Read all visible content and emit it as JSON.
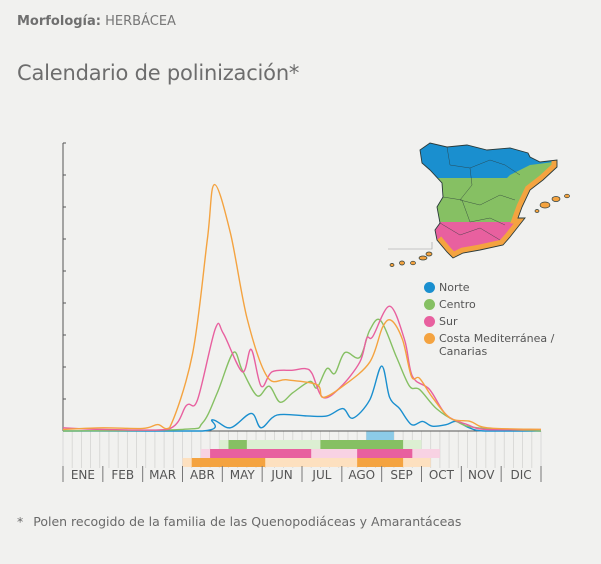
{
  "header": {
    "morphology_label": "Morfología:",
    "morphology_value": "HERBÁCEA"
  },
  "title": "Calendario de polinización*",
  "footnote": {
    "marker": "*",
    "text": "Polen recogido de la familia de las Quenopodiáceas y Amarantáceas"
  },
  "legend": [
    {
      "name": "Norte",
      "color": "#1a8fcf"
    },
    {
      "name": "Centro",
      "color": "#86c063"
    },
    {
      "name": "Sur",
      "color": "#e8609f"
    },
    {
      "name": "Costa Mediterránea / Canarias",
      "color": "#f4a340"
    }
  ],
  "chart_data": {
    "type": "line",
    "title": "",
    "xlabel": "",
    "ylabel": "",
    "x_unit": "month",
    "xlim": [
      0,
      12
    ],
    "ylim": [
      0,
      9
    ],
    "y_tick_labels_shown": false,
    "grid": false,
    "legend_position": "right",
    "categories": [
      "ENE",
      "FEB",
      "MAR",
      "ABR",
      "MAY",
      "JUN",
      "JUL",
      "AGO",
      "SEP",
      "OCT",
      "NOV",
      "DIC"
    ],
    "series": [
      {
        "name": "Norte",
        "color": "#1a8fcf",
        "points": [
          [
            0,
            0
          ],
          [
            3.5,
            0
          ],
          [
            3.75,
            0.35
          ],
          [
            4.2,
            0.1
          ],
          [
            4.725,
            0.55
          ],
          [
            4.975,
            0.1
          ],
          [
            5.375,
            0.5
          ],
          [
            6.125,
            0.47
          ],
          [
            6.625,
            0.47
          ],
          [
            7.025,
            0.7
          ],
          [
            7.275,
            0.4
          ],
          [
            7.7,
            0.97
          ],
          [
            8.0,
            2.03
          ],
          [
            8.2,
            1.05
          ],
          [
            8.45,
            0.7
          ],
          [
            8.75,
            0.2
          ],
          [
            9.025,
            0.3
          ],
          [
            9.275,
            0.15
          ],
          [
            9.625,
            0.2
          ],
          [
            9.875,
            0.3
          ],
          [
            10.2,
            0.1
          ],
          [
            10.6,
            0
          ],
          [
            12,
            0
          ]
        ]
      },
      {
        "name": "Centro",
        "color": "#86c063",
        "points": [
          [
            0,
            0
          ],
          [
            3,
            0.05
          ],
          [
            3.5,
            0.25
          ],
          [
            3.875,
            1.2
          ],
          [
            4.275,
            2.45
          ],
          [
            4.5,
            1.9
          ],
          [
            4.875,
            1.1
          ],
          [
            5.175,
            1.4
          ],
          [
            5.45,
            0.9
          ],
          [
            5.775,
            1.2
          ],
          [
            6.2,
            1.55
          ],
          [
            6.375,
            1.35
          ],
          [
            6.625,
            1.95
          ],
          [
            6.825,
            1.8
          ],
          [
            7.075,
            2.45
          ],
          [
            7.45,
            2.3
          ],
          [
            7.7,
            3.15
          ],
          [
            7.975,
            3.45
          ],
          [
            8.375,
            2.3
          ],
          [
            8.7,
            1.4
          ],
          [
            8.95,
            1.3
          ],
          [
            9.375,
            0.7
          ],
          [
            9.875,
            0.3
          ],
          [
            10.4,
            0.1
          ],
          [
            12,
            0
          ]
        ]
      },
      {
        "name": "Sur",
        "color": "#e8609f",
        "points": [
          [
            0,
            0.1
          ],
          [
            1,
            0.05
          ],
          [
            2.625,
            0.05
          ],
          [
            3.1,
            0.8
          ],
          [
            3.375,
            0.97
          ],
          [
            3.825,
            3.2
          ],
          [
            4.025,
            3.05
          ],
          [
            4.5,
            1.85
          ],
          [
            4.725,
            2.55
          ],
          [
            4.975,
            1.4
          ],
          [
            5.25,
            1.85
          ],
          [
            5.775,
            1.9
          ],
          [
            6.075,
            1.95
          ],
          [
            6.25,
            1.8
          ],
          [
            6.525,
            1.05
          ],
          [
            6.95,
            1.35
          ],
          [
            7.45,
            2.15
          ],
          [
            7.625,
            2.9
          ],
          [
            7.775,
            2.95
          ],
          [
            8.2,
            3.9
          ],
          [
            8.575,
            2.85
          ],
          [
            8.775,
            1.7
          ],
          [
            9.2,
            1.3
          ],
          [
            9.625,
            0.5
          ],
          [
            10.15,
            0.2
          ],
          [
            10.6,
            0.05
          ],
          [
            12,
            0.05
          ]
        ]
      },
      {
        "name": "Costa Mediterránea / Canarias",
        "color": "#f4a340",
        "points": [
          [
            0,
            0.05
          ],
          [
            1,
            0.1
          ],
          [
            2,
            0.08
          ],
          [
            2.375,
            0.2
          ],
          [
            2.675,
            0.1
          ],
          [
            3.25,
            2.4
          ],
          [
            3.625,
            6.0
          ],
          [
            3.8,
            7.7
          ],
          [
            4.2,
            6.2
          ],
          [
            4.625,
            3.5
          ],
          [
            5.125,
            1.7
          ],
          [
            5.625,
            1.6
          ],
          [
            6.375,
            1.45
          ],
          [
            6.525,
            1.05
          ],
          [
            7.025,
            1.4
          ],
          [
            7.7,
            2.15
          ],
          [
            8.025,
            3.25
          ],
          [
            8.25,
            3.45
          ],
          [
            8.525,
            2.85
          ],
          [
            8.75,
            1.7
          ],
          [
            8.95,
            1.65
          ],
          [
            9.275,
            1.05
          ],
          [
            9.725,
            0.4
          ],
          [
            10.225,
            0.3
          ],
          [
            10.65,
            0.1
          ],
          [
            12,
            0.05
          ]
        ]
      }
    ],
    "calendar": {
      "weeks_per_year": 52,
      "rows": [
        {
          "name": "Norte",
          "light": null,
          "light_color": "#bfe0f2",
          "dark": [
            [
              33,
              36
            ]
          ],
          "dark_color": "#8ccbe8"
        },
        {
          "name": "Centro",
          "light": [
            17,
            39
          ],
          "light_color": "#dcefd2",
          "dark": [
            [
              18,
              20
            ],
            [
              28,
              37
            ]
          ],
          "dark_color": "#86c063"
        },
        {
          "name": "Sur",
          "light": [
            15,
            41
          ],
          "light_color": "#f8d2e3",
          "dark": [
            [
              16,
              27
            ],
            [
              32,
              38
            ]
          ],
          "dark_color": "#e8609f"
        },
        {
          "name": "Costa Mediterránea / Canarias",
          "light": [
            13,
            40
          ],
          "light_color": "#fde0bf",
          "dark": [
            [
              14,
              22
            ],
            [
              32,
              37
            ]
          ],
          "dark_color": "#f4a340"
        }
      ]
    }
  }
}
